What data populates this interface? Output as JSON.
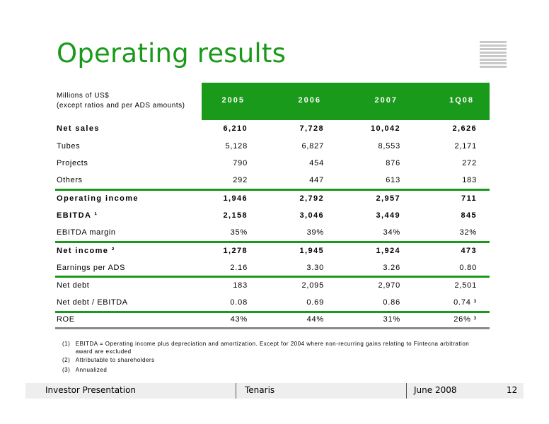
{
  "title": "Operating results",
  "header": {
    "units_line1": "Millions of US$",
    "units_line2": "(except ratios and per ADS amounts)",
    "columns": [
      "2005",
      "2006",
      "2007",
      "1Q08"
    ]
  },
  "rows": [
    {
      "label": "Net sales",
      "values": [
        "6,210",
        "7,728",
        "10,042",
        "2,626"
      ]
    },
    {
      "label": "Tubes",
      "values": [
        "5,128",
        "6,827",
        "8,553",
        "2,171"
      ]
    },
    {
      "label": "Projects",
      "values": [
        "790",
        "454",
        "876",
        "272"
      ]
    },
    {
      "label": "Others",
      "values": [
        "292",
        "447",
        "613",
        "183"
      ]
    },
    {
      "label": "Operating income",
      "values": [
        "1,946",
        "2,792",
        "2,957",
        "711"
      ]
    },
    {
      "label": "EBITDA ¹",
      "values": [
        "2,158",
        "3,046",
        "3,449",
        "845"
      ]
    },
    {
      "label": "EBITDA margin",
      "values": [
        "35%",
        "39%",
        "34%",
        "32%"
      ]
    },
    {
      "label": "Net income ²",
      "values": [
        "1,278",
        "1,945",
        "1,924",
        "473"
      ]
    },
    {
      "label": "Earnings per ADS",
      "values": [
        "2.16",
        "3.30",
        "3.26",
        "0.80"
      ]
    },
    {
      "label": "Net debt",
      "values": [
        "183",
        "2,095",
        "2,970",
        "2,501"
      ]
    },
    {
      "label": "Net debt / EBITDA",
      "values": [
        "0.08",
        "0.69",
        "0.86",
        "0.74 ³"
      ]
    },
    {
      "label": "ROE",
      "values": [
        "43%",
        "44%",
        "31%",
        "26% ³"
      ]
    }
  ],
  "footnotes": [
    {
      "num": "(1)",
      "text": "EBITDA = Operating income plus depreciation and amortization. Except for 2004 where non-recurring gains relating to Fintecna arbitration award are excluded"
    },
    {
      "num": "(2)",
      "text": "Attributable to shareholders"
    },
    {
      "num": "(3)",
      "text": "Annualized"
    }
  ],
  "footer": {
    "left": "Investor Presentation",
    "center": "Tenaris",
    "date": "June 2008",
    "page": "12"
  },
  "colors": {
    "accent": "#1a9a1a",
    "footer_bg": "#eeeeee"
  }
}
